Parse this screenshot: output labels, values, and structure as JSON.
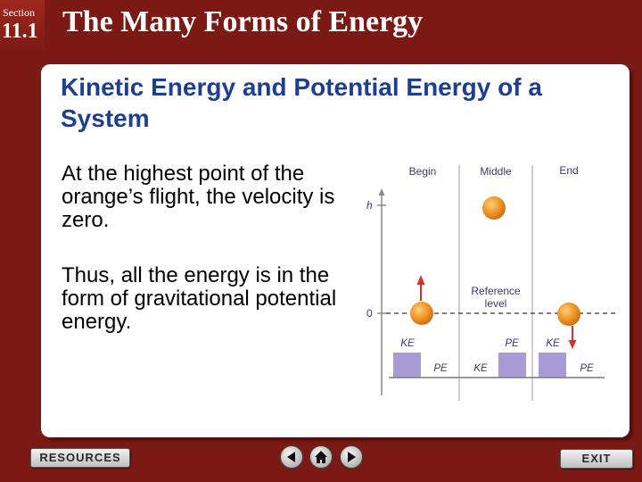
{
  "header": {
    "section_label": "Section",
    "section_number": "11.1",
    "title": "The Many Forms of Energy"
  },
  "content": {
    "heading": "Kinetic Energy and Potential Energy of a System",
    "paragraph1": "At the highest point of the orange’s flight, the velocity is zero.",
    "paragraph2": "Thus, all the energy is in the form of gravitational potential energy."
  },
  "diagram": {
    "columns": [
      "Begin",
      "Middle",
      "End"
    ],
    "axis_top_label": "h",
    "axis_zero_label": "0",
    "reference_label_line1": "Reference",
    "reference_label_line2": "level",
    "bar_labels": {
      "begin_ke": "KE",
      "begin_pe": "PE",
      "middle_pe": "PE",
      "middle_ke": "KE",
      "end_ke": "KE",
      "end_pe": "PE"
    },
    "colors": {
      "orange": "#f08a1c",
      "bar": "#a89bd6",
      "arrow": "#d8302a",
      "text": "#3a3a6a"
    }
  },
  "footer": {
    "resources_label": "RESOURCES",
    "exit_label": "EXIT",
    "nav": [
      "previous-icon",
      "home-icon",
      "next-icon"
    ]
  }
}
